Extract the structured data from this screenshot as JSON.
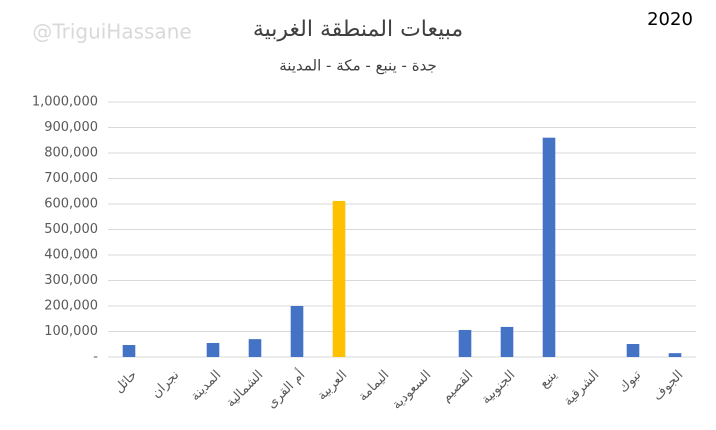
{
  "watermark": "@TriguiHassane",
  "year_label": "2020",
  "chart_data": {
    "type": "bar",
    "title": "مبيعات المنطقة الغربية",
    "subtitle": "جدة - ينبع - مكة - المدينة",
    "categories": [
      "حائل",
      "نجران",
      "المدينة",
      "الشمالية",
      "أم القرى",
      "العربية",
      "اليمامة",
      "السعودية",
      "القصيم",
      "الجنوبية",
      "ينبع",
      "الشرقية",
      "تبوك",
      "الجوف"
    ],
    "values": [
      47000,
      0,
      55000,
      70000,
      200000,
      612000,
      0,
      0,
      106000,
      118000,
      860000,
      0,
      51000,
      15000
    ],
    "colors": [
      "#4472c4",
      "#4472c4",
      "#4472c4",
      "#4472c4",
      "#4472c4",
      "#ffc000",
      "#4472c4",
      "#4472c4",
      "#4472c4",
      "#4472c4",
      "#4472c4",
      "#4472c4",
      "#4472c4",
      "#4472c4"
    ],
    "ylim": [
      0,
      1000000
    ],
    "yticks": [
      {
        "value": 0,
        "label": "-"
      },
      {
        "value": 100000,
        "label": "100,000"
      },
      {
        "value": 200000,
        "label": "200,000"
      },
      {
        "value": 300000,
        "label": "300,000"
      },
      {
        "value": 400000,
        "label": "400,000"
      },
      {
        "value": 500000,
        "label": "500,000"
      },
      {
        "value": 600000,
        "label": "600,000"
      },
      {
        "value": 700000,
        "label": "700,000"
      },
      {
        "value": 800000,
        "label": "800,000"
      },
      {
        "value": 900000,
        "label": "900,000"
      },
      {
        "value": 1000000,
        "label": "1,000,000"
      }
    ],
    "grid": true
  }
}
